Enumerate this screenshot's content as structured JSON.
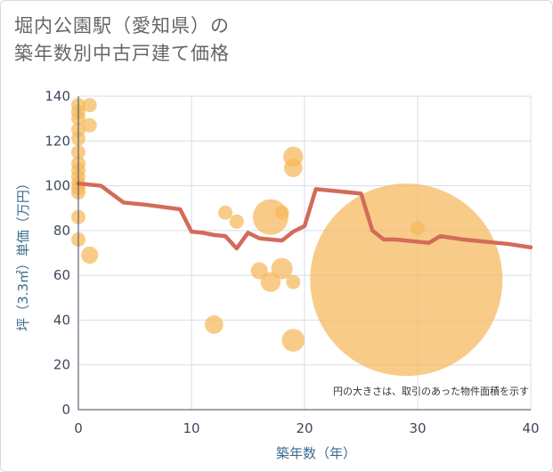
{
  "chart_data": {
    "type": "scatter",
    "title_lines": [
      "堀内公園駅（愛知県）の",
      "築年数別中古戸建て価格"
    ],
    "xlabel": "築年数（年）",
    "ylabel": "坪（3.3㎡）単価（万円）",
    "xlim": [
      0,
      40
    ],
    "ylim": [
      0,
      140
    ],
    "xticks": [
      "0",
      "10",
      "20",
      "30",
      "40"
    ],
    "yticks": [
      "0",
      "20",
      "40",
      "60",
      "80",
      "100",
      "120",
      "140"
    ],
    "annotation": "円の大きさは、取引のあった物件面積を示す",
    "colors": {
      "bubble": "#f5b95a",
      "line": "#d36b5a",
      "grid": "#d4dee8",
      "axis": "#3d4a5c"
    },
    "series": [
      {
        "name": "transactions",
        "type": "bubble",
        "points": [
          {
            "x": 0,
            "y": 136,
            "size": 1
          },
          {
            "x": 0,
            "y": 133,
            "size": 1
          },
          {
            "x": 0,
            "y": 130,
            "size": 1
          },
          {
            "x": 0,
            "y": 125,
            "size": 1
          },
          {
            "x": 0,
            "y": 121,
            "size": 1
          },
          {
            "x": 0,
            "y": 115,
            "size": 1
          },
          {
            "x": 0,
            "y": 110,
            "size": 1
          },
          {
            "x": 0,
            "y": 107,
            "size": 1
          },
          {
            "x": 0,
            "y": 104,
            "size": 1
          },
          {
            "x": 0,
            "y": 101,
            "size": 1
          },
          {
            "x": 0,
            "y": 99,
            "size": 1
          },
          {
            "x": 0,
            "y": 97,
            "size": 1
          },
          {
            "x": 0,
            "y": 86,
            "size": 1
          },
          {
            "x": 0,
            "y": 76,
            "size": 1
          },
          {
            "x": 1,
            "y": 136,
            "size": 1
          },
          {
            "x": 1,
            "y": 127,
            "size": 1
          },
          {
            "x": 1,
            "y": 69,
            "size": 1.2
          },
          {
            "x": 12,
            "y": 38,
            "size": 1.3
          },
          {
            "x": 13,
            "y": 88,
            "size": 1
          },
          {
            "x": 14,
            "y": 84,
            "size": 1
          },
          {
            "x": 16,
            "y": 62,
            "size": 1.2
          },
          {
            "x": 17,
            "y": 86,
            "size": 2.5
          },
          {
            "x": 17,
            "y": 57,
            "size": 1.4
          },
          {
            "x": 18,
            "y": 88,
            "size": 1
          },
          {
            "x": 18,
            "y": 63,
            "size": 1.5
          },
          {
            "x": 19,
            "y": 113,
            "size": 1.4
          },
          {
            "x": 19,
            "y": 108,
            "size": 1.3
          },
          {
            "x": 19,
            "y": 57,
            "size": 1
          },
          {
            "x": 19,
            "y": 31,
            "size": 1.6
          },
          {
            "x": 29,
            "y": 58,
            "size": 13.5
          },
          {
            "x": 30,
            "y": 81,
            "size": 1
          }
        ]
      },
      {
        "name": "average",
        "type": "line",
        "x": [
          0,
          2,
          4,
          6,
          9,
          10,
          11,
          12,
          13,
          14,
          15,
          16,
          17,
          18,
          19,
          20,
          21,
          25,
          26,
          27,
          28,
          30,
          31,
          32,
          34,
          36,
          38,
          40
        ],
        "y": [
          101,
          100,
          92.5,
          91.5,
          89.5,
          79.5,
          79,
          78,
          77.5,
          72,
          79,
          76.5,
          76,
          75.5,
          79.5,
          82,
          98.5,
          96.5,
          80,
          76,
          76,
          75,
          74.5,
          77.5,
          76,
          75,
          74,
          72.5
        ]
      }
    ]
  }
}
